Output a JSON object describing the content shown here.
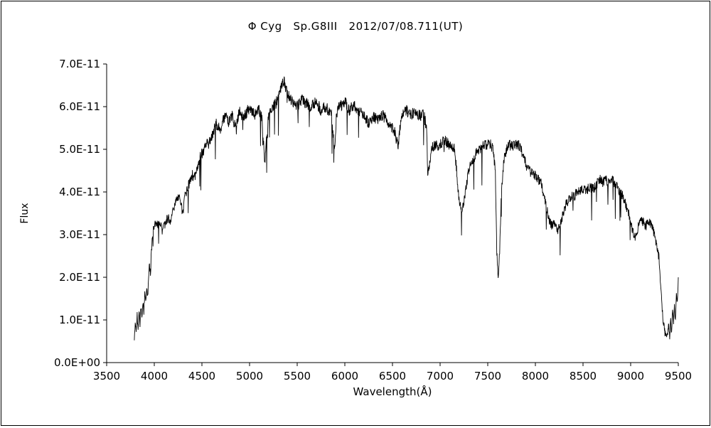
{
  "chart_data": {
    "type": "line",
    "title": "Φ Cyg   Sp.G8III   2012/07/08.711(UT)",
    "xlabel": "Wavelength(Å)",
    "ylabel": "Flux",
    "legend": "none",
    "grid": false,
    "line_color": "#000000",
    "xlim": [
      3500,
      9500
    ],
    "ylim_e11": [
      0,
      7
    ],
    "xticks": [
      3500,
      4000,
      4500,
      5000,
      5500,
      6000,
      6500,
      7000,
      7500,
      8000,
      8500,
      9000,
      9500
    ],
    "ytick_labels": [
      "0.0E+00",
      "1.0E-11",
      "2.0E-11",
      "3.0E-11",
      "4.0E-11",
      "5.0E-11",
      "6.0E-11",
      "7.0E-11"
    ],
    "noise_amplitude_e11": 0.14,
    "flux_scale_note": "flux values below are in units of 1E-11 as read from the y-axis",
    "points_e11": [
      [
        3790,
        0.6
      ],
      [
        3800,
        1.0
      ],
      [
        3810,
        0.7
      ],
      [
        3820,
        1.1
      ],
      [
        3830,
        0.8
      ],
      [
        3840,
        1.2
      ],
      [
        3850,
        0.9
      ],
      [
        3860,
        1.3
      ],
      [
        3870,
        1.1
      ],
      [
        3880,
        1.4
      ],
      [
        3890,
        1.2
      ],
      [
        3900,
        1.6
      ],
      [
        3910,
        1.4
      ],
      [
        3920,
        1.7
      ],
      [
        3930,
        1.5
      ],
      [
        3940,
        2.0
      ],
      [
        3950,
        2.3
      ],
      [
        3960,
        2.1
      ],
      [
        3970,
        2.6
      ],
      [
        3980,
        2.9
      ],
      [
        3990,
        3.1
      ],
      [
        4000,
        3.2
      ],
      [
        4020,
        3.3
      ],
      [
        4040,
        3.2
      ],
      [
        4060,
        3.3
      ],
      [
        4080,
        3.1
      ],
      [
        4100,
        3.2
      ],
      [
        4120,
        3.3
      ],
      [
        4150,
        3.4
      ],
      [
        4170,
        3.3
      ],
      [
        4200,
        3.6
      ],
      [
        4220,
        3.7
      ],
      [
        4250,
        3.9
      ],
      [
        4270,
        3.8
      ],
      [
        4300,
        3.5
      ],
      [
        4320,
        3.9
      ],
      [
        4350,
        4.1
      ],
      [
        4380,
        4.3
      ],
      [
        4400,
        4.4
      ],
      [
        4420,
        4.3
      ],
      [
        4450,
        4.6
      ],
      [
        4480,
        4.8
      ],
      [
        4500,
        4.9
      ],
      [
        4520,
        5.0
      ],
      [
        4550,
        5.2
      ],
      [
        4570,
        5.1
      ],
      [
        4600,
        5.3
      ],
      [
        4620,
        5.4
      ],
      [
        4650,
        5.6
      ],
      [
        4680,
        5.5
      ],
      [
        4700,
        5.5
      ],
      [
        4720,
        5.7
      ],
      [
        4750,
        5.8
      ],
      [
        4780,
        5.6
      ],
      [
        4800,
        5.7
      ],
      [
        4820,
        5.8
      ],
      [
        4850,
        5.5
      ],
      [
        4870,
        5.7
      ],
      [
        4900,
        5.9
      ],
      [
        4920,
        5.8
      ],
      [
        4950,
        5.8
      ],
      [
        4980,
        5.9
      ],
      [
        5000,
        6.0
      ],
      [
        5030,
        5.9
      ],
      [
        5050,
        5.8
      ],
      [
        5080,
        5.9
      ],
      [
        5100,
        5.9
      ],
      [
        5130,
        5.7
      ],
      [
        5160,
        4.7
      ],
      [
        5180,
        5.3
      ],
      [
        5200,
        5.8
      ],
      [
        5230,
        5.9
      ],
      [
        5250,
        6.0
      ],
      [
        5280,
        6.1
      ],
      [
        5300,
        6.2
      ],
      [
        5330,
        6.4
      ],
      [
        5360,
        6.6
      ],
      [
        5380,
        6.4
      ],
      [
        5400,
        6.3
      ],
      [
        5430,
        6.2
      ],
      [
        5450,
        6.1
      ],
      [
        5480,
        6.0
      ],
      [
        5500,
        6.0
      ],
      [
        5530,
        6.1
      ],
      [
        5550,
        6.2
      ],
      [
        5580,
        6.1
      ],
      [
        5600,
        6.1
      ],
      [
        5630,
        6.0
      ],
      [
        5650,
        6.0
      ],
      [
        5680,
        6.1
      ],
      [
        5700,
        6.1
      ],
      [
        5730,
        6.0
      ],
      [
        5750,
        5.9
      ],
      [
        5780,
        6.0
      ],
      [
        5800,
        6.0
      ],
      [
        5830,
        5.9
      ],
      [
        5860,
        5.8
      ],
      [
        5890,
        5.0
      ],
      [
        5910,
        5.7
      ],
      [
        5930,
        6.0
      ],
      [
        5950,
        6.0
      ],
      [
        5980,
        6.1
      ],
      [
        6000,
        6.1
      ],
      [
        6030,
        6.0
      ],
      [
        6050,
        5.9
      ],
      [
        6080,
        6.0
      ],
      [
        6100,
        6.0
      ],
      [
        6130,
        5.9
      ],
      [
        6150,
        5.9
      ],
      [
        6180,
        5.8
      ],
      [
        6200,
        5.8
      ],
      [
        6230,
        5.7
      ],
      [
        6250,
        5.6
      ],
      [
        6280,
        5.7
      ],
      [
        6300,
        5.8
      ],
      [
        6330,
        5.7
      ],
      [
        6350,
        5.7
      ],
      [
        6380,
        5.8
      ],
      [
        6400,
        5.8
      ],
      [
        6430,
        5.7
      ],
      [
        6450,
        5.6
      ],
      [
        6480,
        5.5
      ],
      [
        6500,
        5.5
      ],
      [
        6530,
        5.4
      ],
      [
        6560,
        5.1
      ],
      [
        6580,
        5.5
      ],
      [
        6600,
        5.8
      ],
      [
        6630,
        5.9
      ],
      [
        6650,
        5.9
      ],
      [
        6680,
        5.8
      ],
      [
        6700,
        5.8
      ],
      [
        6730,
        5.9
      ],
      [
        6750,
        5.9
      ],
      [
        6780,
        5.8
      ],
      [
        6800,
        5.8
      ],
      [
        6830,
        5.8
      ],
      [
        6860,
        5.5
      ],
      [
        6870,
        4.3
      ],
      [
        6890,
        4.7
      ],
      [
        6910,
        5.0
      ],
      [
        6940,
        5.1
      ],
      [
        6970,
        5.1
      ],
      [
        7000,
        5.1
      ],
      [
        7030,
        5.2
      ],
      [
        7060,
        5.2
      ],
      [
        7090,
        5.1
      ],
      [
        7120,
        5.1
      ],
      [
        7150,
        5.0
      ],
      [
        7170,
        4.6
      ],
      [
        7190,
        4.0
      ],
      [
        7210,
        3.7
      ],
      [
        7230,
        3.6
      ],
      [
        7250,
        3.8
      ],
      [
        7270,
        4.1
      ],
      [
        7300,
        4.5
      ],
      [
        7330,
        4.7
      ],
      [
        7360,
        4.8
      ],
      [
        7400,
        5.0
      ],
      [
        7430,
        5.0
      ],
      [
        7460,
        5.1
      ],
      [
        7500,
        5.1
      ],
      [
        7530,
        5.1
      ],
      [
        7560,
        5.0
      ],
      [
        7580,
        4.4
      ],
      [
        7595,
        2.6
      ],
      [
        7610,
        1.9
      ],
      [
        7625,
        2.6
      ],
      [
        7640,
        3.8
      ],
      [
        7660,
        4.5
      ],
      [
        7680,
        4.9
      ],
      [
        7700,
        5.0
      ],
      [
        7730,
        5.1
      ],
      [
        7760,
        5.1
      ],
      [
        7790,
        5.1
      ],
      [
        7820,
        5.1
      ],
      [
        7850,
        5.0
      ],
      [
        7880,
        4.8
      ],
      [
        7910,
        4.6
      ],
      [
        7940,
        4.5
      ],
      [
        7970,
        4.4
      ],
      [
        8000,
        4.4
      ],
      [
        8030,
        4.3
      ],
      [
        8060,
        4.2
      ],
      [
        8090,
        3.9
      ],
      [
        8120,
        3.6
      ],
      [
        8150,
        3.3
      ],
      [
        8180,
        3.2
      ],
      [
        8210,
        3.3
      ],
      [
        8230,
        3.1
      ],
      [
        8260,
        3.2
      ],
      [
        8290,
        3.5
      ],
      [
        8320,
        3.7
      ],
      [
        8350,
        3.8
      ],
      [
        8380,
        3.9
      ],
      [
        8410,
        3.9
      ],
      [
        8440,
        4.0
      ],
      [
        8470,
        4.0
      ],
      [
        8500,
        4.1
      ],
      [
        8530,
        4.0
      ],
      [
        8560,
        4.1
      ],
      [
        8590,
        4.1
      ],
      [
        8620,
        4.1
      ],
      [
        8650,
        4.2
      ],
      [
        8680,
        4.3
      ],
      [
        8710,
        4.2
      ],
      [
        8740,
        4.3
      ],
      [
        8770,
        4.2
      ],
      [
        8800,
        4.3
      ],
      [
        8830,
        4.2
      ],
      [
        8860,
        4.1
      ],
      [
        8890,
        4.0
      ],
      [
        8920,
        3.9
      ],
      [
        8950,
        3.7
      ],
      [
        8980,
        3.5
      ],
      [
        9000,
        3.3
      ],
      [
        9020,
        3.1
      ],
      [
        9050,
        2.9
      ],
      [
        9080,
        3.2
      ],
      [
        9100,
        3.3
      ],
      [
        9130,
        3.3
      ],
      [
        9160,
        3.2
      ],
      [
        9190,
        3.3
      ],
      [
        9220,
        3.2
      ],
      [
        9250,
        3.0
      ],
      [
        9280,
        2.7
      ],
      [
        9300,
        2.4
      ],
      [
        9320,
        1.6
      ],
      [
        9340,
        1.0
      ],
      [
        9360,
        0.7
      ],
      [
        9380,
        0.6
      ],
      [
        9400,
        0.9
      ],
      [
        9410,
        0.6
      ],
      [
        9420,
        1.0
      ],
      [
        9430,
        0.7
      ],
      [
        9440,
        1.2
      ],
      [
        9450,
        0.9
      ],
      [
        9460,
        1.3
      ],
      [
        9470,
        1.0
      ],
      [
        9480,
        1.6
      ],
      [
        9490,
        1.4
      ],
      [
        9500,
        2.0
      ]
    ]
  }
}
